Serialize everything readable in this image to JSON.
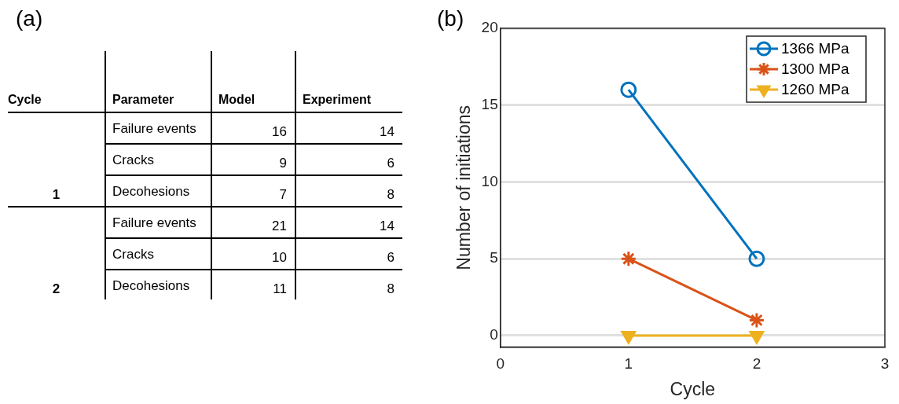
{
  "chart_data": [
    {
      "type": "other",
      "title": "(a)",
      "data_labels": true,
      "annotations": [
        "Cycle",
        "Parameter"
      ],
      "y_categories": [
        "1",
        "2"
      ],
      "categories": [
        "Failure events",
        "Cracks",
        "Decohesions",
        "Failure events",
        "Cracks",
        "Decohesions"
      ],
      "series": [
        {
          "name": "Model",
          "values": [
            16,
            9,
            7,
            21,
            10,
            11
          ]
        },
        {
          "name": "Experiment",
          "values": [
            14,
            6,
            8,
            14,
            6,
            8
          ]
        }
      ]
    },
    {
      "type": "line",
      "title": "(b)",
      "xlabel": "Cycle",
      "ylabel": "Number of initiations",
      "xlim": [
        0,
        3
      ],
      "xticks": [
        0,
        1,
        2,
        3
      ],
      "ylim": [
        -0.75,
        20
      ],
      "yticks": [
        0,
        5,
        10,
        15,
        20
      ],
      "grid": "y",
      "legend": "top right",
      "x": [
        1,
        2
      ],
      "series": [
        {
          "name": "1366 MPa",
          "color": "#0072bd",
          "marker": "circle",
          "values": [
            16,
            5
          ]
        },
        {
          "name": "1300 MPa",
          "color": "#d95319",
          "marker": "cross",
          "values": [
            5,
            1
          ]
        },
        {
          "name": "1260 MPa",
          "color": "#edb120",
          "marker": "triangle",
          "values": [
            0,
            0
          ]
        }
      ]
    }
  ]
}
